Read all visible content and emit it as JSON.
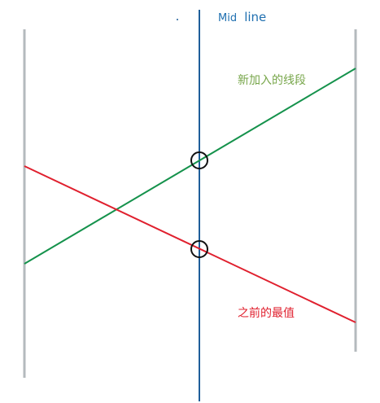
{
  "labels": {
    "mid_line_prefix": "Mid",
    "mid_line_suffix": "line",
    "new_segment": "新加入的线段",
    "previous_max": "之前的最值"
  },
  "colors": {
    "boundary": "#b4babd",
    "mid_line": "#1f5f9a",
    "new_segment": "#15924c",
    "previous_max": "#e0202e",
    "mid_label": "#1f6fb0",
    "new_label": "#77a64a",
    "prev_label": "#e0202e",
    "intersection_marker": "#111111"
  }
}
